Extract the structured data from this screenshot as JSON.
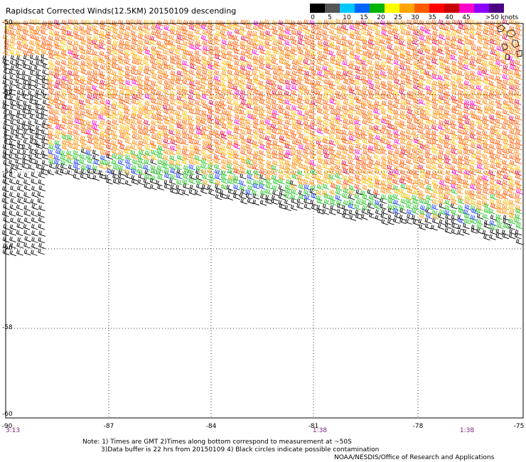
{
  "title": "Rapidscat Corrected Winds(12.5KM) 20150109 descending",
  "legend": {
    "labels": [
      "0",
      "5",
      "10",
      "15",
      "20",
      "25",
      "30",
      "35",
      "40",
      "45",
      ">50 knots"
    ],
    "colors": [
      "#000000",
      "#555555",
      "#00c8ff",
      "#0064ff",
      "#00b400",
      "#ffff00",
      "#ffa500",
      "#ff5a00",
      "#ff0000",
      "#c80000",
      "#ff00c8",
      "#8c00ff",
      "#4b0082"
    ]
  },
  "map": {
    "lat_labels": [
      "-50",
      "-52",
      "-54",
      "-56",
      "-58",
      "-60"
    ],
    "lon_labels": [
      "-90",
      "-87",
      "-84",
      "-81",
      "-78",
      "-75"
    ],
    "time_labels": [
      "3:13",
      "1:38",
      "1:38"
    ],
    "lat_range": [
      -60,
      -50
    ],
    "lon_range": [
      -90,
      -75
    ]
  },
  "notes": {
    "line1": "Note: 1) Times are GMT 2)Times along bottom correspond to measurement at ~50S",
    "line2": "3)Data buffer is 22 hrs from 20150109 4) Black circles indicate possible contamination",
    "credit": "NOAA/NESDIS/Office of Research and Applications"
  }
}
